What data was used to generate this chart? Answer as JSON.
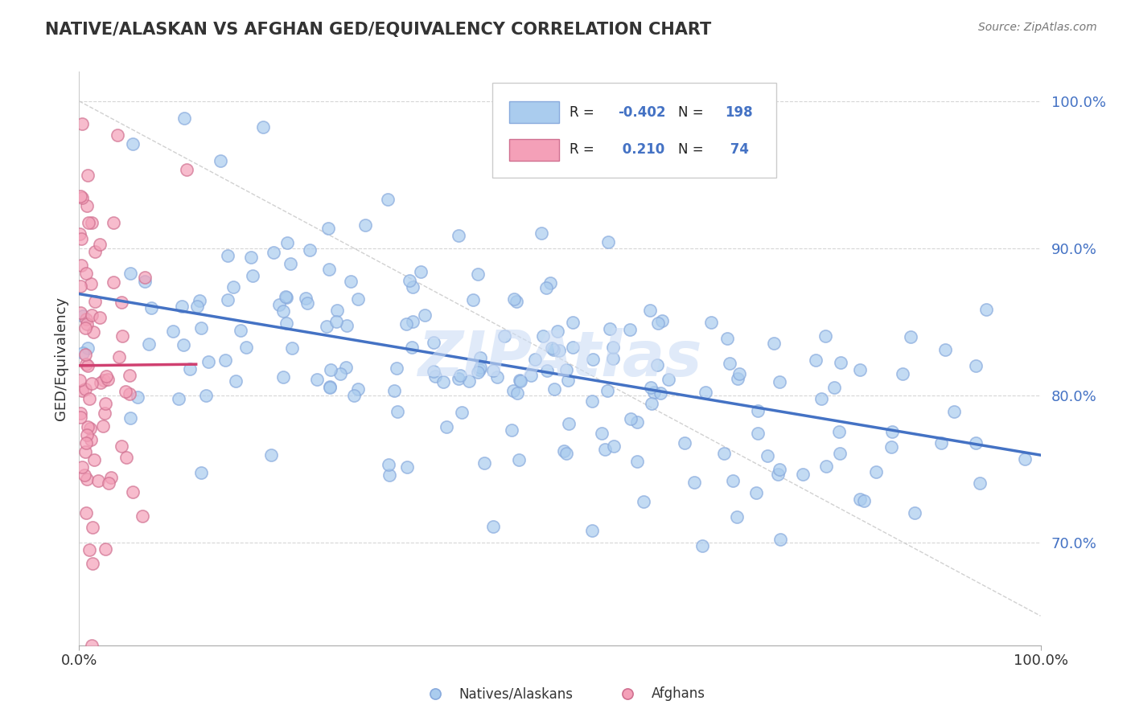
{
  "title": "NATIVE/ALASKAN VS AFGHAN GED/EQUIVALENCY CORRELATION CHART",
  "source_text": "Source: ZipAtlas.com",
  "ylabel": "GED/Equivalency",
  "color_blue": "#aaccee",
  "color_pink": "#f4a0b8",
  "line_blue": "#4472c4",
  "line_pink": "#d04070",
  "color_r_value": "#4472c4",
  "watermark": "ZIPAtlas",
  "watermark_color": "#ccddf5",
  "r_blue": -0.402,
  "n_blue": 198,
  "r_pink": 0.21,
  "n_pink": 74,
  "xlim": [
    0.0,
    1.0
  ],
  "ylim": [
    0.63,
    1.02
  ],
  "yticks": [
    0.7,
    0.8,
    0.9,
    1.0
  ],
  "ytick_labels": [
    "70.0%",
    "80.0%",
    "90.0%",
    "100.0%"
  ],
  "xtick_left": "0.0%",
  "xtick_right": "100.0%",
  "legend_label1": "Natives/Alaskans",
  "legend_label2": "Afghans"
}
